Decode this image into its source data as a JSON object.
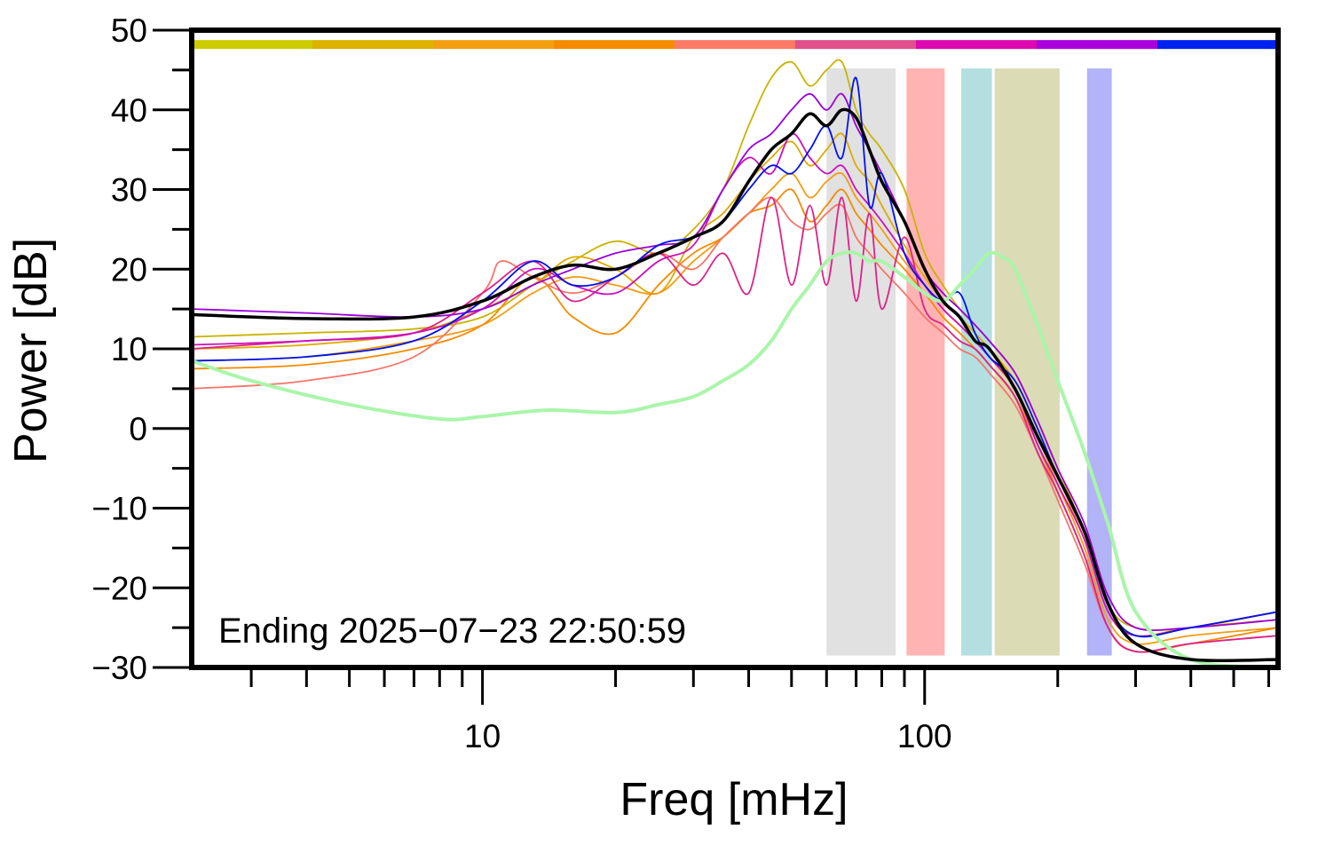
{
  "chart_data": {
    "type": "line",
    "title": "",
    "xlabel": "Freq [mHz]",
    "ylabel": "Power [dB]",
    "x_scale": "log",
    "xlim": [
      2.2,
      630
    ],
    "ylim": [
      -30,
      50
    ],
    "x_major_ticks": [
      10,
      100
    ],
    "x_major_tick_labels": [
      "10",
      "100"
    ],
    "y_ticks": [
      50,
      40,
      30,
      20,
      10,
      0,
      -10,
      -20,
      -30
    ],
    "y_tick_labels": [
      "50",
      "40",
      "30",
      "20",
      "10",
      "0",
      "−10",
      "−20",
      "−30"
    ],
    "annotation": "Ending 2025−07−23 22:50:59",
    "grid": false,
    "legend": "none",
    "color_strip": {
      "y": 48.2,
      "colors": [
        "#cccc00",
        "#ddb300",
        "#f3a010",
        "#f58c00",
        "#fa7a66",
        "#e0508a",
        "#dd08b0",
        "#aa00dd",
        "#0022ee"
      ]
    },
    "bands": [
      {
        "x0": 60,
        "x1": 86,
        "color": "#e1e1e1"
      },
      {
        "x0": 91,
        "x1": 111,
        "color": "#ffb3b3"
      },
      {
        "x0": 121,
        "x1": 142,
        "color": "#b3dfe0"
      },
      {
        "x0": 144,
        "x1": 202,
        "color": "#dbdbb6"
      },
      {
        "x0": 233,
        "x1": 265,
        "color": "#b3b3f7"
      }
    ],
    "series": [
      {
        "color": "#c8b400",
        "width": 1.8,
        "x": [
          2.2,
          4,
          7,
          10,
          13,
          16,
          20,
          25,
          30,
          35,
          40,
          45,
          50,
          55,
          60,
          65,
          70,
          75,
          80,
          90,
          100,
          110,
          120,
          130,
          140,
          160,
          180,
          200,
          230,
          260,
          300,
          400,
          630
        ],
        "y": [
          11.5,
          12,
          12.5,
          14,
          18,
          21,
          23.5,
          22,
          25,
          30,
          38,
          44,
          46,
          43,
          45,
          46,
          40,
          37,
          35,
          30,
          22,
          18,
          15,
          13,
          11,
          7,
          1,
          -5,
          -13,
          -22,
          -25,
          -25,
          -23
        ]
      },
      {
        "color": "#ddaa00",
        "width": 1.8,
        "x": [
          2.2,
          4,
          7,
          10,
          13,
          16,
          20,
          25,
          30,
          35,
          40,
          45,
          50,
          55,
          60,
          65,
          70,
          75,
          80,
          90,
          100,
          110,
          120,
          130,
          140,
          160,
          180,
          200,
          230,
          260,
          300,
          400,
          630
        ],
        "y": [
          10,
          10.5,
          12,
          15,
          18,
          21.5,
          20,
          17,
          24,
          27,
          31,
          34,
          36,
          33,
          35,
          37,
          33,
          31,
          28,
          23,
          19,
          16,
          14,
          12,
          10,
          6,
          0,
          -6,
          -14,
          -23,
          -26,
          -25,
          -24
        ]
      },
      {
        "color": "#f39c12",
        "width": 1.8,
        "x": [
          2.2,
          4,
          7,
          10,
          13,
          16,
          20,
          25,
          30,
          35,
          40,
          45,
          50,
          55,
          60,
          65,
          70,
          75,
          80,
          90,
          100,
          110,
          120,
          130,
          140,
          160,
          180,
          200,
          230,
          260,
          300,
          400,
          630
        ],
        "y": [
          8.5,
          9,
          11,
          13,
          17,
          19,
          18,
          17,
          21,
          24,
          27,
          30,
          32,
          29,
          31,
          32,
          29,
          27,
          25,
          21,
          18,
          15,
          13,
          11,
          9,
          5,
          -1,
          -7,
          -15,
          -24,
          -27,
          -26,
          -25
        ]
      },
      {
        "color": "#f58a00",
        "width": 1.8,
        "x": [
          2.2,
          4,
          7,
          10,
          13,
          16,
          20,
          25,
          30,
          35,
          40,
          45,
          50,
          55,
          60,
          65,
          70,
          75,
          80,
          90,
          100,
          110,
          120,
          130,
          140,
          160,
          180,
          200,
          230,
          260,
          300,
          400,
          630
        ],
        "y": [
          7.5,
          8,
          10,
          13,
          19,
          14,
          12,
          18,
          22,
          24,
          27,
          28,
          30,
          26,
          28,
          30,
          27,
          25,
          23,
          20,
          17,
          14,
          12,
          10,
          8,
          4,
          -2,
          -8,
          -16,
          -25,
          -28,
          -27,
          -25
        ]
      },
      {
        "color": "#f5756a",
        "width": 1.8,
        "x": [
          2.2,
          4,
          7,
          10,
          11,
          13,
          16,
          20,
          25,
          30,
          35,
          40,
          45,
          50,
          55,
          60,
          65,
          70,
          75,
          80,
          90,
          100,
          110,
          120,
          130,
          140,
          160,
          180,
          200,
          230,
          260,
          300,
          400,
          630
        ],
        "y": [
          5,
          6,
          9,
          17,
          21,
          19,
          17,
          19,
          22,
          20,
          24,
          27,
          29,
          26,
          25,
          27,
          28,
          24,
          22,
          20,
          17,
          14,
          12,
          10,
          9,
          7,
          3,
          -3,
          -9,
          -17,
          -25,
          -28,
          -27,
          -26
        ]
      },
      {
        "color": "#dd2288",
        "width": 1.8,
        "x": [
          2.2,
          4,
          7,
          10,
          13,
          16,
          20,
          25,
          30,
          35,
          40,
          45,
          50,
          55,
          60,
          65,
          70,
          75,
          80,
          90,
          100,
          110,
          120,
          130,
          140,
          160,
          180,
          200,
          230,
          260,
          300,
          400,
          630
        ],
        "y": [
          10,
          11,
          12,
          17,
          21,
          16,
          19,
          22,
          18,
          22,
          17,
          29,
          18,
          28,
          18,
          29,
          16,
          27,
          15,
          24,
          15,
          13,
          11,
          10,
          8,
          4,
          -3,
          -8,
          -16,
          -25,
          -28,
          -27,
          -26
        ]
      },
      {
        "color": "#cc10bb",
        "width": 1.8,
        "x": [
          2.2,
          4,
          7,
          10,
          13,
          16,
          20,
          25,
          30,
          35,
          40,
          45,
          50,
          55,
          60,
          65,
          70,
          75,
          80,
          90,
          100,
          110,
          120,
          130,
          140,
          160,
          180,
          200,
          230,
          260,
          300,
          400,
          630
        ],
        "y": [
          10.5,
          11,
          12,
          15,
          20,
          18,
          17,
          21,
          23,
          30,
          34,
          32,
          37,
          34,
          32,
          33,
          30,
          28,
          26,
          22,
          18,
          15,
          13,
          11,
          9,
          5,
          -2,
          -7,
          -14,
          -23,
          -26,
          -25,
          -23
        ]
      },
      {
        "color": "#9900dd",
        "width": 1.8,
        "x": [
          2.2,
          4,
          7,
          10,
          13,
          16,
          20,
          25,
          30,
          35,
          40,
          45,
          50,
          55,
          60,
          65,
          70,
          75,
          80,
          90,
          100,
          110,
          120,
          130,
          140,
          160,
          180,
          200,
          230,
          260,
          300,
          400,
          630
        ],
        "y": [
          15,
          14.5,
          14,
          15,
          18,
          20,
          22,
          23,
          24,
          30,
          35,
          37,
          40,
          42,
          40,
          42,
          38,
          35,
          32,
          26,
          20,
          17,
          15,
          13,
          11,
          7,
          1,
          -5,
          -12,
          -21,
          -25,
          -25,
          -24
        ]
      },
      {
        "color": "#0011ee",
        "width": 1.8,
        "x": [
          2.2,
          4,
          7,
          10,
          13,
          16,
          20,
          25,
          30,
          35,
          40,
          45,
          50,
          55,
          60,
          65,
          70,
          75,
          80,
          90,
          100,
          110,
          120,
          130,
          140,
          160,
          180,
          200,
          230,
          260,
          300,
          400,
          630
        ],
        "y": [
          8.5,
          9,
          11,
          16,
          21,
          18,
          19,
          23,
          24,
          26,
          30,
          33,
          32,
          35,
          38,
          34,
          44,
          28,
          32,
          22,
          18,
          16,
          17,
          12,
          9,
          6,
          0,
          -6,
          -13,
          -22,
          -26,
          -25,
          -23
        ]
      },
      {
        "color": "#aaf5aa",
        "width": 4,
        "x": [
          2.2,
          3,
          5,
          8,
          10,
          14,
          20,
          25,
          30,
          35,
          40,
          45,
          50,
          55,
          60,
          65,
          70,
          75,
          80,
          90,
          100,
          110,
          120,
          130,
          140,
          150,
          160,
          180,
          200,
          230,
          260,
          300,
          400,
          630
        ],
        "y": [
          8.5,
          6,
          3,
          1.2,
          1.5,
          2.3,
          2,
          3,
          4,
          6,
          8,
          11,
          15,
          18,
          21,
          22,
          22,
          21,
          21,
          19,
          17,
          16,
          18,
          20,
          22,
          21.5,
          20,
          13,
          6,
          -3,
          -12,
          -23,
          -29,
          -30
        ]
      },
      {
        "color": "#000000",
        "width": 3.5,
        "x": [
          2.2,
          4,
          7,
          10,
          13,
          16,
          20,
          25,
          30,
          35,
          40,
          45,
          50,
          55,
          60,
          65,
          70,
          75,
          80,
          90,
          100,
          110,
          120,
          130,
          140,
          160,
          180,
          200,
          230,
          260,
          300,
          400,
          630
        ],
        "y": [
          14.3,
          13.8,
          14,
          16,
          19,
          20.5,
          20,
          22,
          24,
          26,
          31,
          35,
          37,
          39.5,
          38,
          40,
          39,
          35,
          31,
          26,
          20,
          16,
          14,
          11,
          10,
          5,
          -1,
          -6,
          -13,
          -22,
          -27,
          -29,
          -29
        ]
      }
    ]
  }
}
